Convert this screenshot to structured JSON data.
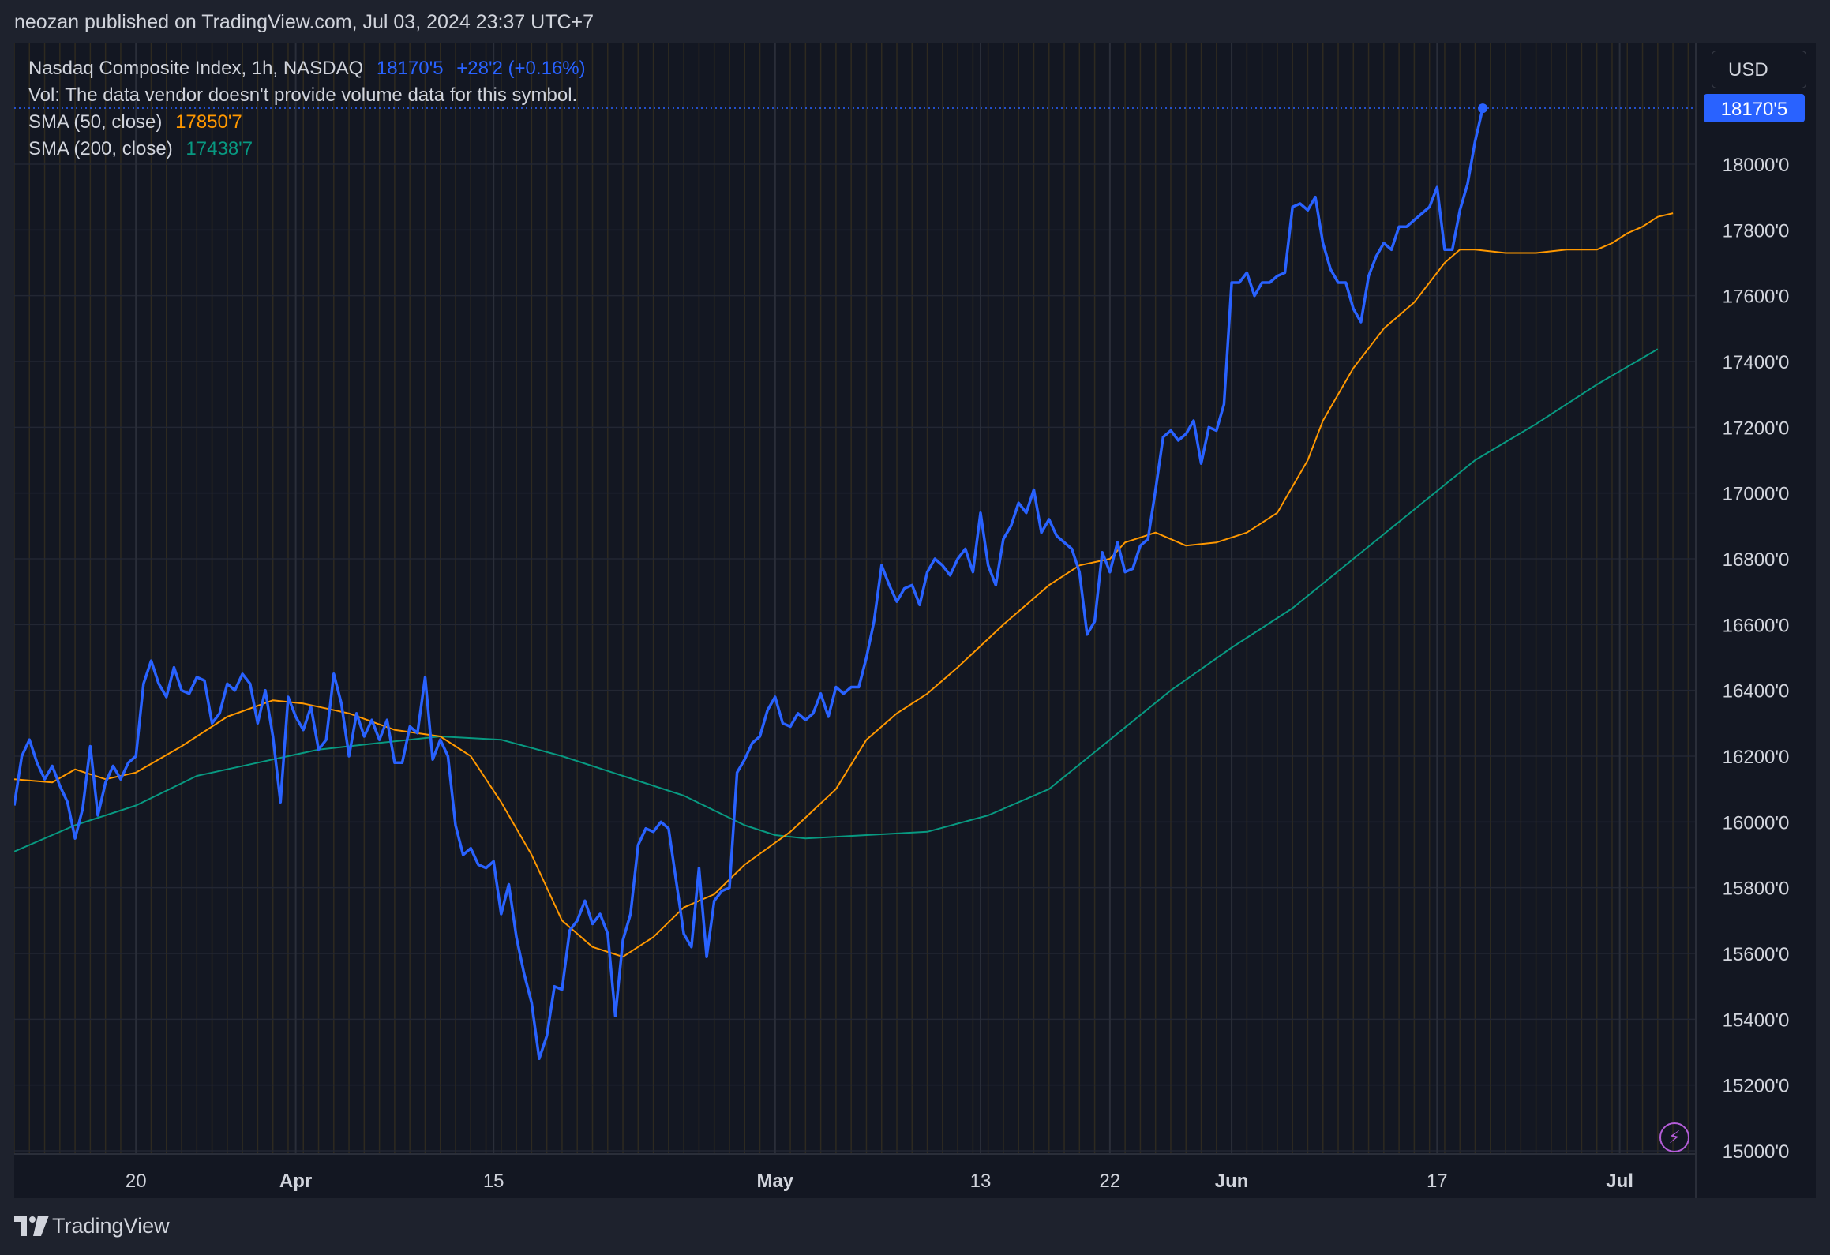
{
  "header": {
    "published_text": "neozan published on TradingView.com, Jul 03, 2024 23:37 UTC+7"
  },
  "legend": {
    "title": "Nasdaq Composite Index, 1h, NASDAQ",
    "price": "18170'5",
    "change": "+28'2 (+0.16%)",
    "vol_note": "Vol: The data vendor doesn't provide volume data for this symbol.",
    "sma50_label": "SMA (50, close)",
    "sma50_value": "17850'7",
    "sma200_label": "SMA (200, close)",
    "sma200_value": "17438'7"
  },
  "currency_button": "USD",
  "footer": {
    "brand": "TradingView"
  },
  "colors": {
    "price": "#2962ff",
    "sma50": "#ff9800",
    "sma200": "#089981",
    "background": "#131722",
    "grid": "#2a2e39",
    "session_line": "#3a3320"
  },
  "icons": [
    "tradingview-logo-icon",
    "lightning-icon"
  ],
  "chart_data": {
    "type": "line",
    "title": "Nasdaq Composite Index, 1h, NASDAQ",
    "x_ticks": [
      {
        "t": 4,
        "label": "20"
      },
      {
        "t": 25,
        "label": "Apr"
      },
      {
        "t": 51,
        "label": "15"
      },
      {
        "t": 88,
        "label": "May"
      },
      {
        "t": 115,
        "label": "13"
      },
      {
        "t": 132,
        "label": "22"
      },
      {
        "t": 148,
        "label": "Jun"
      },
      {
        "t": 175,
        "label": "17"
      },
      {
        "t": 199,
        "label": "Jul"
      }
    ],
    "x_range": [
      -12,
      209
    ],
    "y_ticks": [
      15000,
      15200,
      15400,
      15600,
      15800,
      16000,
      16200,
      16400,
      16600,
      16800,
      17000,
      17200,
      17400,
      17600,
      17800,
      18000
    ],
    "y_tick_labels": [
      "15000'0",
      "15200'0",
      "15400'0",
      "15600'0",
      "15800'0",
      "16000'0",
      "16200'0",
      "16400'0",
      "16600'0",
      "16800'0",
      "17000'0",
      "17200'0",
      "17400'0",
      "17600'0",
      "17800'0",
      "18000'0"
    ],
    "ylim": [
      14995,
      18230
    ],
    "last_value": 18170.5,
    "last_value_label": "18170'5",
    "series": [
      {
        "name": "Nasdaq Composite Index",
        "color": "#2962ff",
        "points": [
          [
            -12,
            16050
          ],
          [
            -11,
            16200
          ],
          [
            -10,
            16250
          ],
          [
            -9,
            16180
          ],
          [
            -8,
            16130
          ],
          [
            -7,
            16170
          ],
          [
            -6,
            16110
          ],
          [
            -5,
            16060
          ],
          [
            -4,
            15950
          ],
          [
            -3,
            16040
          ],
          [
            -2,
            16230
          ],
          [
            -1,
            16020
          ],
          [
            0,
            16120
          ],
          [
            1,
            16170
          ],
          [
            2,
            16130
          ],
          [
            3,
            16180
          ],
          [
            4,
            16200
          ],
          [
            5,
            16420
          ],
          [
            6,
            16490
          ],
          [
            7,
            16420
          ],
          [
            8,
            16380
          ],
          [
            9,
            16470
          ],
          [
            10,
            16400
          ],
          [
            11,
            16390
          ],
          [
            12,
            16440
          ],
          [
            13,
            16430
          ],
          [
            14,
            16300
          ],
          [
            15,
            16330
          ],
          [
            16,
            16420
          ],
          [
            17,
            16400
          ],
          [
            18,
            16450
          ],
          [
            19,
            16420
          ],
          [
            20,
            16300
          ],
          [
            21,
            16400
          ],
          [
            22,
            16260
          ],
          [
            23,
            16060
          ],
          [
            24,
            16380
          ],
          [
            25,
            16320
          ],
          [
            26,
            16280
          ],
          [
            27,
            16350
          ],
          [
            28,
            16220
          ],
          [
            29,
            16250
          ],
          [
            30,
            16450
          ],
          [
            31,
            16360
          ],
          [
            32,
            16200
          ],
          [
            33,
            16330
          ],
          [
            34,
            16260
          ],
          [
            35,
            16310
          ],
          [
            36,
            16250
          ],
          [
            37,
            16310
          ],
          [
            38,
            16180
          ],
          [
            39,
            16180
          ],
          [
            40,
            16290
          ],
          [
            41,
            16270
          ],
          [
            42,
            16440
          ],
          [
            43,
            16190
          ],
          [
            44,
            16250
          ],
          [
            45,
            16200
          ],
          [
            46,
            15990
          ],
          [
            47,
            15900
          ],
          [
            48,
            15920
          ],
          [
            49,
            15870
          ],
          [
            50,
            15860
          ],
          [
            51,
            15880
          ],
          [
            52,
            15720
          ],
          [
            53,
            15810
          ],
          [
            54,
            15650
          ],
          [
            55,
            15540
          ],
          [
            56,
            15450
          ],
          [
            57,
            15280
          ],
          [
            58,
            15350
          ],
          [
            59,
            15500
          ],
          [
            60,
            15490
          ],
          [
            61,
            15670
          ],
          [
            62,
            15700
          ],
          [
            63,
            15760
          ],
          [
            64,
            15690
          ],
          [
            65,
            15720
          ],
          [
            66,
            15660
          ],
          [
            67,
            15410
          ],
          [
            68,
            15640
          ],
          [
            69,
            15720
          ],
          [
            70,
            15930
          ],
          [
            71,
            15980
          ],
          [
            72,
            15970
          ],
          [
            73,
            16000
          ],
          [
            74,
            15980
          ],
          [
            75,
            15820
          ],
          [
            76,
            15660
          ],
          [
            77,
            15620
          ],
          [
            78,
            15860
          ],
          [
            79,
            15590
          ],
          [
            80,
            15760
          ],
          [
            81,
            15790
          ],
          [
            82,
            15800
          ],
          [
            83,
            16150
          ],
          [
            84,
            16190
          ],
          [
            85,
            16240
          ],
          [
            86,
            16260
          ],
          [
            87,
            16340
          ],
          [
            88,
            16380
          ],
          [
            89,
            16300
          ],
          [
            90,
            16290
          ],
          [
            91,
            16330
          ],
          [
            92,
            16310
          ],
          [
            93,
            16330
          ],
          [
            94,
            16390
          ],
          [
            95,
            16320
          ],
          [
            96,
            16410
          ],
          [
            97,
            16390
          ],
          [
            98,
            16410
          ],
          [
            99,
            16410
          ],
          [
            100,
            16500
          ],
          [
            101,
            16610
          ],
          [
            102,
            16780
          ],
          [
            103,
            16720
          ],
          [
            104,
            16670
          ],
          [
            105,
            16710
          ],
          [
            106,
            16720
          ],
          [
            107,
            16660
          ],
          [
            108,
            16760
          ],
          [
            109,
            16800
          ],
          [
            110,
            16780
          ],
          [
            111,
            16750
          ],
          [
            112,
            16800
          ],
          [
            113,
            16830
          ],
          [
            114,
            16760
          ],
          [
            115,
            16940
          ],
          [
            116,
            16780
          ],
          [
            117,
            16720
          ],
          [
            118,
            16860
          ],
          [
            119,
            16900
          ],
          [
            120,
            16970
          ],
          [
            121,
            16940
          ],
          [
            122,
            17010
          ],
          [
            123,
            16880
          ],
          [
            124,
            16920
          ],
          [
            125,
            16870
          ],
          [
            126,
            16850
          ],
          [
            127,
            16830
          ],
          [
            128,
            16760
          ],
          [
            129,
            16570
          ],
          [
            130,
            16610
          ],
          [
            131,
            16820
          ],
          [
            132,
            16760
          ],
          [
            133,
            16850
          ],
          [
            134,
            16760
          ],
          [
            135,
            16770
          ],
          [
            136,
            16840
          ],
          [
            137,
            16860
          ],
          [
            138,
            17010
          ],
          [
            139,
            17170
          ],
          [
            140,
            17190
          ],
          [
            141,
            17160
          ],
          [
            142,
            17180
          ],
          [
            143,
            17220
          ],
          [
            144,
            17090
          ],
          [
            145,
            17200
          ],
          [
            146,
            17190
          ],
          [
            147,
            17270
          ],
          [
            148,
            17640
          ],
          [
            149,
            17640
          ],
          [
            150,
            17670
          ],
          [
            151,
            17600
          ],
          [
            152,
            17640
          ],
          [
            153,
            17640
          ],
          [
            154,
            17660
          ],
          [
            155,
            17670
          ],
          [
            156,
            17870
          ],
          [
            157,
            17880
          ],
          [
            158,
            17860
          ],
          [
            159,
            17900
          ],
          [
            160,
            17760
          ],
          [
            161,
            17680
          ],
          [
            162,
            17640
          ],
          [
            163,
            17640
          ],
          [
            164,
            17560
          ],
          [
            165,
            17520
          ],
          [
            166,
            17660
          ],
          [
            167,
            17720
          ],
          [
            168,
            17760
          ],
          [
            169,
            17740
          ],
          [
            170,
            17810
          ],
          [
            171,
            17810
          ],
          [
            172,
            17830
          ],
          [
            173,
            17850
          ],
          [
            174,
            17870
          ],
          [
            175,
            17930
          ],
          [
            176,
            17740
          ],
          [
            177,
            17740
          ],
          [
            178,
            17860
          ],
          [
            179,
            17940
          ],
          [
            180,
            18070
          ],
          [
            181,
            18170
          ]
        ]
      },
      {
        "name": "SMA (50, close)",
        "color": "#ff9800",
        "points": [
          [
            -12,
            16130
          ],
          [
            -7,
            16120
          ],
          [
            -4,
            16160
          ],
          [
            0,
            16130
          ],
          [
            4,
            16150
          ],
          [
            10,
            16230
          ],
          [
            16,
            16320
          ],
          [
            22,
            16370
          ],
          [
            26,
            16360
          ],
          [
            32,
            16330
          ],
          [
            38,
            16280
          ],
          [
            44,
            16260
          ],
          [
            48,
            16200
          ],
          [
            52,
            16060
          ],
          [
            56,
            15900
          ],
          [
            60,
            15700
          ],
          [
            64,
            15620
          ],
          [
            68,
            15590
          ],
          [
            72,
            15650
          ],
          [
            76,
            15740
          ],
          [
            80,
            15780
          ],
          [
            84,
            15870
          ],
          [
            90,
            15970
          ],
          [
            96,
            16100
          ],
          [
            100,
            16250
          ],
          [
            104,
            16330
          ],
          [
            108,
            16390
          ],
          [
            112,
            16470
          ],
          [
            118,
            16600
          ],
          [
            124,
            16720
          ],
          [
            128,
            16780
          ],
          [
            132,
            16800
          ],
          [
            134,
            16850
          ],
          [
            138,
            16880
          ],
          [
            142,
            16840
          ],
          [
            146,
            16850
          ],
          [
            150,
            16880
          ],
          [
            154,
            16940
          ],
          [
            158,
            17100
          ],
          [
            160,
            17220
          ],
          [
            164,
            17380
          ],
          [
            168,
            17500
          ],
          [
            172,
            17580
          ],
          [
            176,
            17700
          ],
          [
            178,
            17740
          ],
          [
            180,
            17740
          ],
          [
            184,
            17730
          ],
          [
            188,
            17730
          ],
          [
            192,
            17740
          ],
          [
            196,
            17740
          ],
          [
            198,
            17760
          ],
          [
            200,
            17790
          ],
          [
            202,
            17810
          ],
          [
            204,
            17840
          ],
          [
            206,
            17851
          ]
        ]
      },
      {
        "name": "SMA (200, close)",
        "color": "#089981",
        "points": [
          [
            -12,
            15910
          ],
          [
            -4,
            15990
          ],
          [
            4,
            16050
          ],
          [
            12,
            16140
          ],
          [
            20,
            16180
          ],
          [
            28,
            16220
          ],
          [
            36,
            16240
          ],
          [
            44,
            16260
          ],
          [
            52,
            16250
          ],
          [
            60,
            16200
          ],
          [
            68,
            16140
          ],
          [
            76,
            16080
          ],
          [
            84,
            15990
          ],
          [
            88,
            15960
          ],
          [
            92,
            15950
          ],
          [
            100,
            15960
          ],
          [
            108,
            15970
          ],
          [
            116,
            16020
          ],
          [
            124,
            16100
          ],
          [
            132,
            16250
          ],
          [
            140,
            16400
          ],
          [
            148,
            16530
          ],
          [
            156,
            16650
          ],
          [
            164,
            16800
          ],
          [
            172,
            16950
          ],
          [
            180,
            17100
          ],
          [
            188,
            17210
          ],
          [
            196,
            17330
          ],
          [
            204,
            17438
          ]
        ]
      }
    ]
  }
}
